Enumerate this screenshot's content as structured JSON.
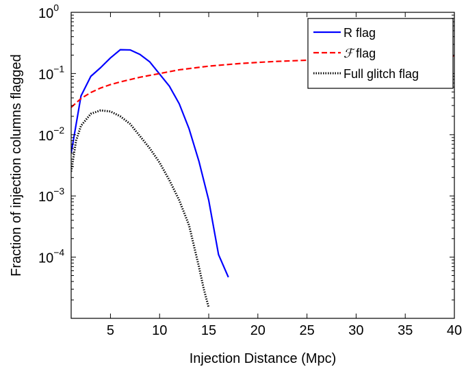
{
  "chart_data": {
    "type": "line",
    "title": "",
    "xlabel": "Injection Distance (Mpc)",
    "ylabel": "Fraction of injection columns flagged",
    "xlim": [
      1,
      40
    ],
    "ylim": [
      1e-05,
      1
    ],
    "yscale": "log",
    "xticks": [
      5,
      10,
      15,
      20,
      25,
      30,
      35,
      40
    ],
    "yticks": [
      {
        "value": 0.0001,
        "mantissa": "10",
        "exponent": "−4"
      },
      {
        "value": 0.001,
        "mantissa": "10",
        "exponent": "−3"
      },
      {
        "value": 0.01,
        "mantissa": "10",
        "exponent": "−2"
      },
      {
        "value": 0.1,
        "mantissa": "10",
        "exponent": "−1"
      },
      {
        "value": 1,
        "mantissa": "10",
        "exponent": "0"
      }
    ],
    "grid": false,
    "legend_position": "top-right",
    "series": [
      {
        "name": "R flag",
        "color": "#0000ff",
        "dash": "solid",
        "x": [
          1,
          2,
          3,
          4,
          5,
          6,
          7,
          8,
          9,
          10,
          11,
          12,
          13,
          14,
          15,
          16,
          17
        ],
        "y": [
          0.005,
          0.043,
          0.09,
          0.125,
          0.18,
          0.245,
          0.243,
          0.205,
          0.155,
          0.098,
          0.062,
          0.032,
          0.0125,
          0.0037,
          0.00085,
          0.00011,
          4.7e-05
        ]
      },
      {
        "name_prefix": "ℱ",
        "name": "flag",
        "color": "#ff0000",
        "dash": "dashed",
        "x": [
          1,
          2,
          3,
          4,
          5,
          6,
          8,
          10,
          12,
          15,
          18,
          20,
          22,
          25,
          28,
          30,
          33,
          35,
          38,
          40
        ],
        "y": [
          0.028,
          0.039,
          0.049,
          0.058,
          0.066,
          0.073,
          0.087,
          0.1,
          0.115,
          0.132,
          0.145,
          0.152,
          0.158,
          0.165,
          0.172,
          0.176,
          0.181,
          0.185,
          0.19,
          0.193
        ]
      },
      {
        "name": "Full glitch flag",
        "color": "#000000",
        "dash": "dotted",
        "x": [
          1,
          1.5,
          2,
          3,
          4,
          5,
          6,
          7,
          8,
          9,
          10,
          11,
          12,
          13,
          14,
          14.5,
          15
        ],
        "y": [
          0.0025,
          0.008,
          0.014,
          0.022,
          0.025,
          0.024,
          0.02,
          0.015,
          0.0095,
          0.006,
          0.0035,
          0.0018,
          0.00085,
          0.00033,
          7e-05,
          3e-05,
          1.5e-05
        ]
      }
    ]
  }
}
